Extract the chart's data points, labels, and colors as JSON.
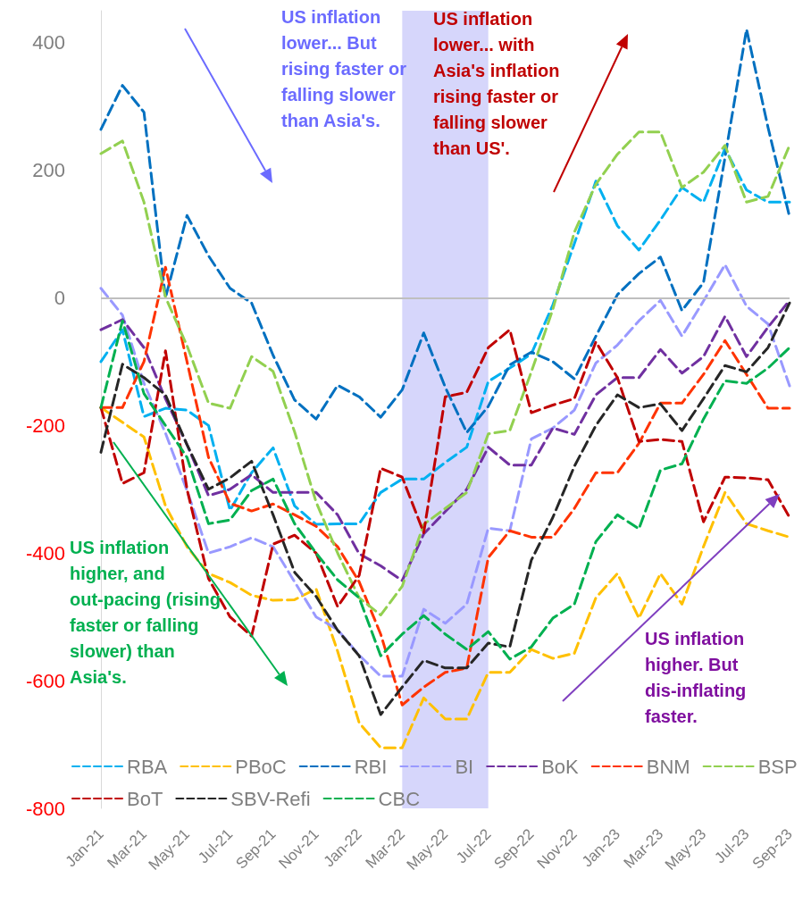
{
  "chart_data": {
    "type": "line",
    "categories": [
      "Jan-21",
      null,
      "Mar-21",
      null,
      "May-21",
      null,
      "Jul-21",
      null,
      "Sep-21",
      null,
      "Nov-21",
      null,
      "Jan-22",
      null,
      "Mar-22",
      null,
      "May-22",
      null,
      "Jul-22",
      null,
      "Sep-22",
      null,
      "Nov-22",
      null,
      "Jan-23",
      null,
      "Mar-23",
      null,
      "May-23",
      null,
      "Jul-23",
      null,
      "Sep-23"
    ],
    "series": [
      {
        "name": "RBA",
        "color": "#00b0f0",
        "values": [
          -100,
          -50,
          -186,
          -173,
          -176,
          -200,
          -333,
          -274,
          -235,
          -326,
          -355,
          -354,
          -354,
          -305,
          -284,
          -284,
          -258,
          -234,
          -131,
          -110,
          -88,
          -11,
          85,
          183,
          113,
          75,
          122,
          173,
          150,
          234,
          169,
          150,
          150
        ]
      },
      {
        "name": "PBoC",
        "color": "#ffc000",
        "values": [
          -172,
          -195,
          -218,
          -326,
          -390,
          -432,
          -446,
          -466,
          -474,
          -473,
          -456,
          -554,
          -666,
          -705,
          -705,
          -627,
          -660,
          -660,
          -587,
          -587,
          -551,
          -565,
          -557,
          -470,
          -432,
          -502,
          -432,
          -480,
          -390,
          -305,
          -354,
          -365,
          -375
        ]
      },
      {
        "name": "RBI",
        "color": "#0070c0",
        "values": [
          264,
          333,
          291,
          0,
          129,
          66,
          15,
          -8,
          -90,
          -160,
          -190,
          -137,
          -155,
          -187,
          -144,
          -55,
          -140,
          -211,
          -170,
          -105,
          -85,
          -100,
          -127,
          -60,
          5,
          38,
          64,
          -20,
          24,
          220,
          421,
          267,
          127
        ]
      },
      {
        "name": "BI",
        "color": "#9999ff",
        "values": [
          15,
          -27,
          -134,
          -212,
          -302,
          -400,
          -390,
          -376,
          -390,
          -445,
          -500,
          -520,
          -560,
          -593,
          -593,
          -488,
          -510,
          -480,
          -361,
          -365,
          -221,
          -204,
          -176,
          -102,
          -74,
          -36,
          -4,
          -60,
          -5,
          52,
          -13,
          -41,
          -138
        ]
      },
      {
        "name": "BoK",
        "color": "#7030a0",
        "values": [
          -50,
          -34,
          -78,
          -158,
          -230,
          -310,
          -300,
          -277,
          -305,
          -305,
          -305,
          -340,
          -401,
          -420,
          -443,
          -370,
          -335,
          -300,
          -234,
          -262,
          -262,
          -204,
          -214,
          -152,
          -125,
          -125,
          -81,
          -118,
          -92,
          -29,
          -92,
          -46,
          -4
        ]
      },
      {
        "name": "BNM",
        "color": "#ff3300",
        "values": [
          -172,
          -172,
          -100,
          48,
          -100,
          -250,
          -322,
          -334,
          -323,
          -340,
          -358,
          -390,
          -445,
          -527,
          -638,
          -610,
          -587,
          -580,
          -407,
          -365,
          -375,
          -375,
          -330,
          -274,
          -274,
          -228,
          -165,
          -165,
          -120,
          -67,
          -120,
          -173,
          -173
        ]
      },
      {
        "name": "BSP",
        "color": "#92d050",
        "values": [
          226,
          246,
          150,
          1,
          -75,
          -165,
          -173,
          -92,
          -115,
          -210,
          -320,
          -400,
          -470,
          -497,
          -452,
          -355,
          -330,
          -305,
          -213,
          -208,
          -116,
          -18,
          103,
          178,
          225,
          260,
          260,
          173,
          197,
          239,
          150,
          159,
          239
        ]
      },
      {
        "name": "BoT",
        "color": "#c00000",
        "values": [
          -172,
          -291,
          -274,
          -83,
          -300,
          -440,
          -500,
          -530,
          -386,
          -372,
          -400,
          -484,
          -435,
          -267,
          -281,
          -368,
          -155,
          -148,
          -78,
          -50,
          -180,
          -168,
          -158,
          -69,
          -125,
          -225,
          -222,
          -225,
          -351,
          -281,
          -282,
          -285,
          -344
        ]
      },
      {
        "name": "SBV-Refi",
        "color": "#262626",
        "values": [
          -242,
          -104,
          -125,
          -152,
          -230,
          -300,
          -282,
          -256,
          -340,
          -430,
          -468,
          -521,
          -561,
          -653,
          -610,
          -568,
          -580,
          -580,
          -541,
          -547,
          -411,
          -344,
          -264,
          -200,
          -152,
          -172,
          -166,
          -208,
          -158,
          -106,
          -116,
          -78,
          -8
        ]
      },
      {
        "name": "CBC",
        "color": "#00b050",
        "values": [
          -172,
          -36,
          -150,
          -200,
          -250,
          -354,
          -348,
          -302,
          -284,
          -354,
          -400,
          -442,
          -470,
          -561,
          -527,
          -498,
          -527,
          -551,
          -523,
          -566,
          -547,
          -502,
          -480,
          -382,
          -340,
          -362,
          -270,
          -260,
          -190,
          -130,
          -134,
          -110,
          -78
        ]
      }
    ],
    "ylim": [
      -800,
      450
    ],
    "yticks": [
      -800,
      -600,
      -400,
      -200,
      0,
      200,
      400
    ],
    "bands": [
      {
        "axis": "x",
        "from": "Mar-22",
        "to": "Jul-22",
        "color": "#d6d6fb"
      }
    ],
    "ref_lines": [
      {
        "axis": "y",
        "value": 0,
        "color": "#bfbfbf"
      }
    ],
    "annotations": [
      "US inflation lower... But rising faster or falling slower than Asia's.",
      "US inflation lower... with Asia's inflation rising faster or falling slower than US'.",
      "US inflation higher, and out-pacing (rising faster or falling slower) than Asia's.",
      "US inflation higher. But dis-inflating faster."
    ],
    "legend": "bottom",
    "marker": "none",
    "line_style": "dashed",
    "grid": false
  }
}
